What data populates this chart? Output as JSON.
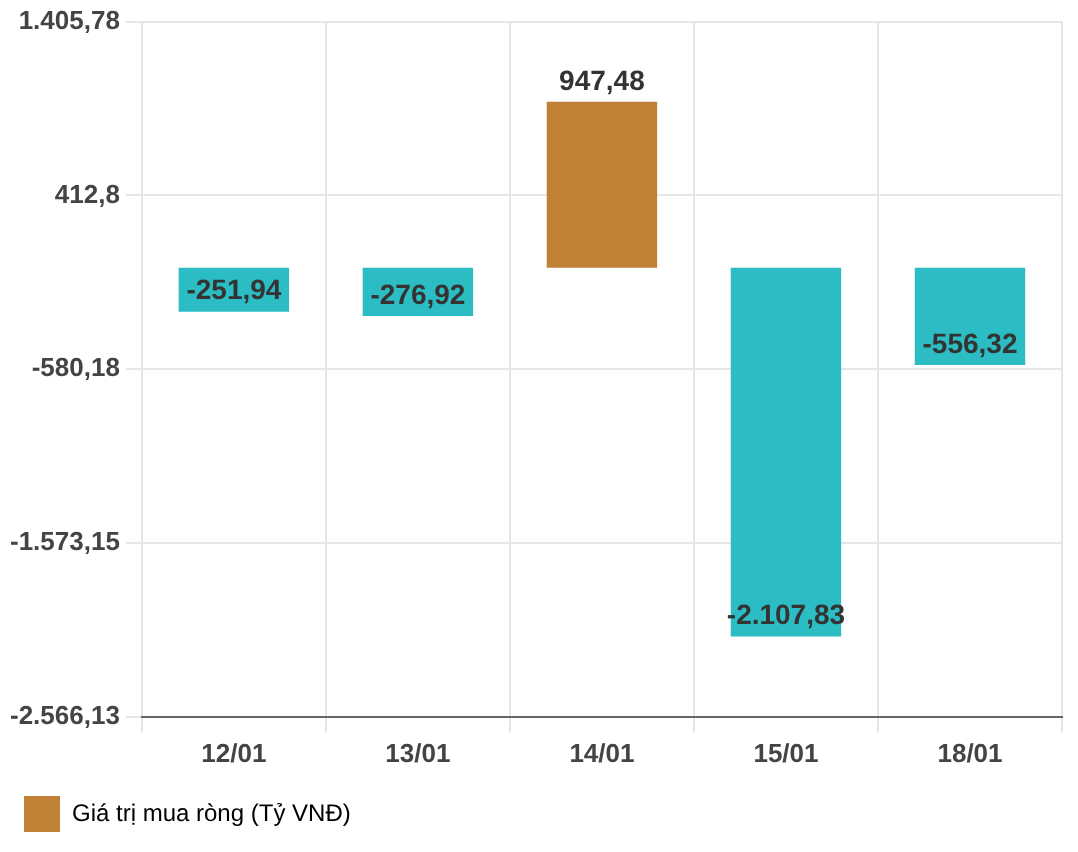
{
  "chart_data": {
    "type": "bar",
    "categories": [
      "12/01",
      "13/01",
      "14/01",
      "15/01",
      "18/01"
    ],
    "series": [
      {
        "name": "Giá trị mua ròng (Tỷ VNĐ)",
        "color": "#c08136",
        "colors": [
          "#2bbdc3",
          "#2bbdc3",
          "#c08136",
          "#2bbdc3",
          "#2bbdc3"
        ],
        "values": [
          -251.94,
          -276.92,
          947.48,
          -2107.83,
          -556.32
        ],
        "value_labels": [
          "-251,94",
          "-276,92",
          "947,48",
          "-2.107,83",
          "-556,32"
        ]
      }
    ],
    "ylim": [
      -2566.13,
      1405.78
    ],
    "yticks": [
      {
        "value": -2566.13,
        "label": "-2.566,13"
      },
      {
        "value": -1573.15,
        "label": "-1.573,15"
      },
      {
        "value": -580.18,
        "label": "-580,18"
      },
      {
        "value": 412.8,
        "label": "412,8"
      },
      {
        "value": 1405.78,
        "label": "1.405,78"
      }
    ],
    "grid": true,
    "legend": "bottom left"
  }
}
